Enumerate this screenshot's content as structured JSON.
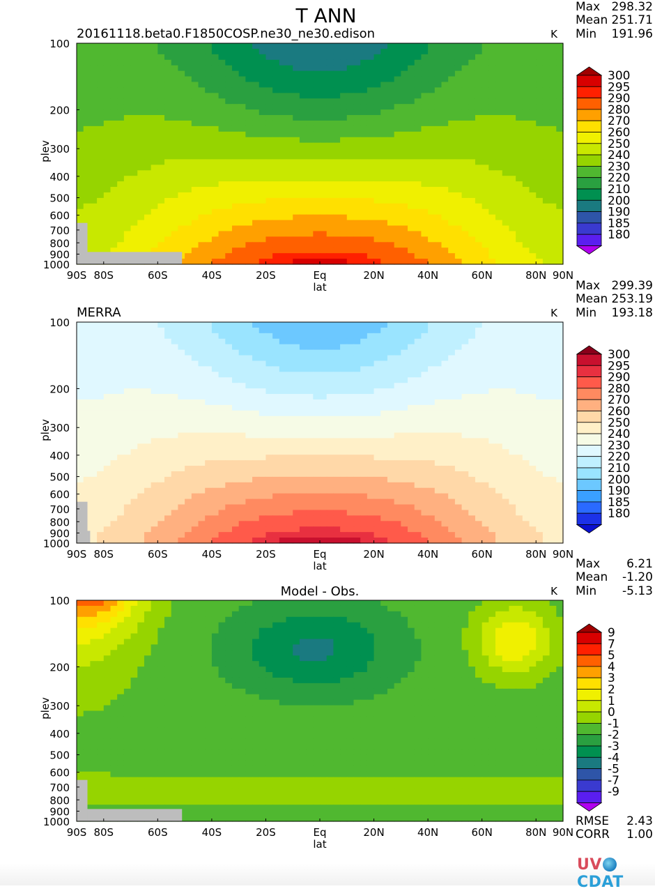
{
  "figure": {
    "title": "T ANN",
    "footer": {
      "logo": "UV-CDAT"
    }
  },
  "chart_data": [
    {
      "type": "contour",
      "subtitle": "20161118.beta0.F1850COSP.ne30_ne30.edison",
      "units": "K",
      "stats": [
        {
          "label": "Max",
          "value": "298.32"
        },
        {
          "label": "Mean",
          "value": "251.71"
        },
        {
          "label": "Min",
          "value": "191.96"
        }
      ],
      "xlabel": "lat",
      "ylabel": "plev",
      "x_ticks": [
        "90S",
        "80S",
        "60S",
        "40S",
        "20S",
        "Eq",
        "20N",
        "40N",
        "60N",
        "80N",
        "90N"
      ],
      "y_ticks": [
        "100",
        "200",
        "300",
        "400",
        "500",
        "600",
        "700",
        "800",
        "900",
        "1000"
      ],
      "xlim": [
        -90,
        90
      ],
      "ylim": [
        1000,
        100
      ],
      "y_scale": "log",
      "colorbar_levels": [
        "300",
        "295",
        "290",
        "280",
        "270",
        "260",
        "250",
        "240",
        "230",
        "220",
        "210",
        "200",
        "190",
        "185",
        "180"
      ],
      "colorbar_colors": [
        "#a00000",
        "#d80000",
        "#ff2000",
        "#ff6000",
        "#ffa000",
        "#ffe000",
        "#f0f000",
        "#c8e800",
        "#96d400",
        "#50b830",
        "#2aa040",
        "#009050",
        "#1a7a80",
        "#2e55a8",
        "#3a3ad0",
        "#5a1ef0",
        "#b000f0"
      ],
      "has_missing_topography": true
    },
    {
      "type": "contour",
      "subtitle": "MERRA",
      "units": "K",
      "stats": [
        {
          "label": "Max",
          "value": "299.39"
        },
        {
          "label": "Mean",
          "value": "253.19"
        },
        {
          "label": "Min",
          "value": "193.18"
        }
      ],
      "xlabel": "lat",
      "ylabel": "plev",
      "x_ticks": [
        "90S",
        "80S",
        "60S",
        "40S",
        "20S",
        "Eq",
        "20N",
        "40N",
        "60N",
        "80N",
        "90N"
      ],
      "y_ticks": [
        "100",
        "200",
        "300",
        "400",
        "500",
        "600",
        "700",
        "800",
        "900",
        "1000"
      ],
      "xlim": [
        -90,
        90
      ],
      "ylim": [
        1000,
        100
      ],
      "y_scale": "log",
      "colorbar_levels": [
        "300",
        "295",
        "290",
        "280",
        "270",
        "260",
        "250",
        "240",
        "230",
        "220",
        "210",
        "200",
        "190",
        "185",
        "180"
      ],
      "colorbar_colors": [
        "#8a001a",
        "#c8102e",
        "#e83040",
        "#ff5a4a",
        "#ff8a60",
        "#ffb080",
        "#ffd8a8",
        "#fff0c8",
        "#f6fbe6",
        "#e0f8ff",
        "#c0f0ff",
        "#9ae4ff",
        "#6cc8ff",
        "#3aa0ff",
        "#2a6aff",
        "#1c32e8",
        "#0a10d0"
      ],
      "has_missing_topography": true
    },
    {
      "type": "contour",
      "subtitle": "Model - Obs.",
      "units": "K",
      "stats": [
        {
          "label": "Max",
          "value": "6.21"
        },
        {
          "label": "Mean",
          "value": "-1.20"
        },
        {
          "label": "Min",
          "value": "-5.13"
        }
      ],
      "extra_stats": [
        {
          "label": "RMSE",
          "value": "2.43"
        },
        {
          "label": "CORR",
          "value": "1.00"
        }
      ],
      "xlabel": "lat",
      "ylabel": "plev",
      "x_ticks": [
        "90S",
        "80S",
        "60S",
        "40S",
        "20S",
        "Eq",
        "20N",
        "40N",
        "60N",
        "80N",
        "90N"
      ],
      "y_ticks": [
        "100",
        "200",
        "300",
        "400",
        "500",
        "600",
        "700",
        "800",
        "900",
        "1000"
      ],
      "xlim": [
        -90,
        90
      ],
      "ylim": [
        1000,
        100
      ],
      "y_scale": "log",
      "colorbar_levels": [
        "9",
        "7",
        "5",
        "4",
        "3",
        "2",
        "1",
        "0",
        "-1",
        "-2",
        "-3",
        "-4",
        "-5",
        "-7",
        "-9"
      ],
      "colorbar_colors": [
        "#a00000",
        "#d80000",
        "#ff2000",
        "#ff6000",
        "#ffa000",
        "#ffe000",
        "#f0f000",
        "#c8e800",
        "#96d400",
        "#50b830",
        "#2aa040",
        "#009050",
        "#1a7a80",
        "#2e55a8",
        "#3a3ad0",
        "#5a1ef0",
        "#b000f0"
      ],
      "has_missing_topography": true
    }
  ]
}
